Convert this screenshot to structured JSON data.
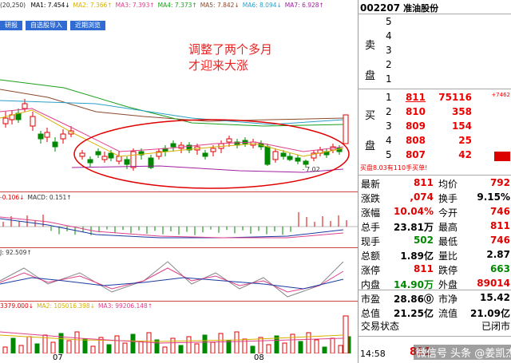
{
  "header": {
    "period_label": "(20,250)",
    "ma_items": [
      {
        "text": "MA1: 7.454↓",
        "color": "#000000"
      },
      {
        "text": "MA2: 7.366↑",
        "color": "#d8b000"
      },
      {
        "text": "MA3: 7.393↑",
        "color": "#e0408a"
      },
      {
        "text": "MA4: 7.373↑",
        "color": "#1aa01a"
      },
      {
        "text": "MA5: 7.842↓",
        "color": "#8a4a2a"
      },
      {
        "text": "MA6: 8.094↓",
        "color": "#2aa0c8"
      },
      {
        "text": "MA7: 6.928↑",
        "color": "#a020a0"
      }
    ],
    "tabs": [
      "研报",
      "自选股导入",
      "近期浏览"
    ]
  },
  "annotation": {
    "line1": "调整了两个多月",
    "line2": "才迎来大涨"
  },
  "price_low_label": "7.02",
  "macd_label": {
    "items": [
      {
        "text": "-0.106↓",
        "color": "#e00000"
      },
      {
        "text": "MACD: 0.151↑",
        "color": "#333333"
      }
    ]
  },
  "kdj_label": {
    "items": [
      {
        "text": "J: 92.509↑",
        "color": "#333333"
      }
    ]
  },
  "vol_label": {
    "items": [
      {
        "text": "3379.000↓",
        "color": "#e00000"
      },
      {
        "text": "MA2: 105016.398↓",
        "color": "#d8b000"
      },
      {
        "text": "MA3: 99206.148↑",
        "color": "#e0408a"
      }
    ]
  },
  "xaxis": {
    "months": [
      "07",
      "08"
    ]
  },
  "quote": {
    "code": "002207",
    "name": "准油股份",
    "sell_side": "卖\n盘",
    "buy_side": "买\n盘",
    "sell_levels": [
      "5",
      "4",
      "3",
      "2",
      "1"
    ],
    "buy_levels": [
      {
        "idx": "1",
        "price": "811",
        "vol": "75116",
        "extra": "+7462"
      },
      {
        "idx": "2",
        "price": "810",
        "vol": "358",
        "extra": ""
      },
      {
        "idx": "3",
        "price": "809",
        "vol": "154",
        "extra": ""
      },
      {
        "idx": "4",
        "price": "808",
        "vol": "25",
        "extra": ""
      },
      {
        "idx": "5",
        "price": "807",
        "vol": "42",
        "extra": ""
      }
    ],
    "buy_note": "买盘8.03有110手买单!",
    "info_rows": [
      [
        {
          "label": "最新",
          "value": "811",
          "color": "#e00000"
        },
        {
          "label": "均价",
          "value": "792",
          "color": "#e00000"
        }
      ],
      [
        {
          "label": "涨跌",
          "value": ",074",
          "color": "#e00000"
        },
        {
          "label": "换手",
          "value": "9.15%",
          "color": "#000000"
        }
      ],
      [
        {
          "label": "涨幅",
          "value": "10.04%",
          "color": "#e00000"
        },
        {
          "label": "今开",
          "value": "746",
          "color": "#e00000"
        }
      ],
      [
        {
          "label": "总手",
          "value": "23.81万",
          "color": "#000000"
        },
        {
          "label": "最高",
          "value": "811",
          "color": "#e00000"
        }
      ],
      [
        {
          "label": "现手",
          "value": "502",
          "color": "#008800"
        },
        {
          "label": "最低",
          "value": "746",
          "color": "#e00000"
        }
      ],
      [
        {
          "label": "总额",
          "value": "1.89亿",
          "color": "#000000"
        },
        {
          "label": "量比",
          "value": "2.87",
          "color": "#000000"
        }
      ],
      [
        {
          "label": "涨停",
          "value": "811",
          "color": "#e00000"
        },
        {
          "label": "跌停",
          "value": "663",
          "color": "#008800"
        }
      ],
      [
        {
          "label": "内盘",
          "value": "14.90万",
          "color": "#008800"
        },
        {
          "label": "外盘",
          "value": "89014",
          "color": "#e00000"
        }
      ]
    ],
    "fund_rows": [
      [
        {
          "label": "市盈",
          "value": "28.86⓪",
          "color": "#000000"
        },
        {
          "label": "市净",
          "value": "15.42",
          "color": "#000000"
        }
      ],
      [
        {
          "label": "总值",
          "value": "21.25亿",
          "color": "#000000"
        },
        {
          "label": "流值",
          "value": "21.09亿",
          "color": "#000000"
        }
      ]
    ],
    "trade_status_label": "交易状态",
    "trade_status_value": "已闭市",
    "tick_time": "14:58",
    "tick_price": "811"
  },
  "watermark": "微信号 头条 @姜凯杰"
}
